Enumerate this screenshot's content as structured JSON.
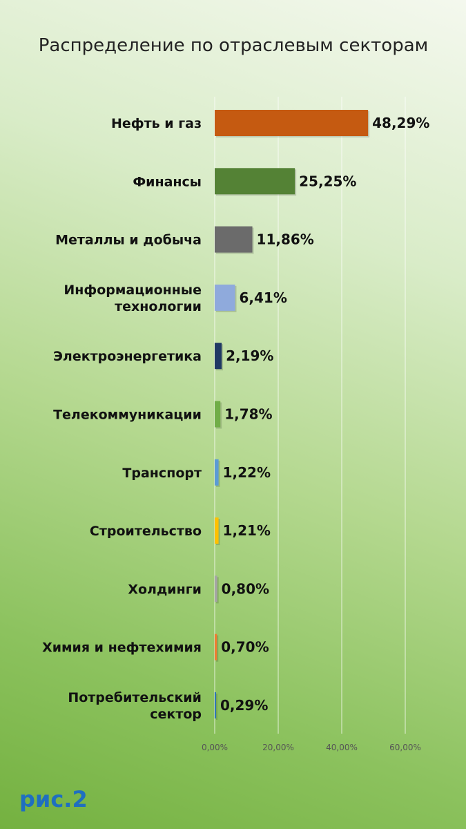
{
  "figure_label": "рис.2",
  "chart_data": {
    "type": "bar",
    "orientation": "horizontal",
    "title": "Распределение по отраслевым секторам",
    "xlabel": "",
    "ylabel": "",
    "xlim": [
      0,
      60
    ],
    "grid": true,
    "legend": false,
    "x_ticks": [
      "0,00%",
      "20,00%",
      "40,00%",
      "60,00%"
    ],
    "categories": [
      [
        "Нефть и газ"
      ],
      [
        "Финансы"
      ],
      [
        "Металлы и добыча"
      ],
      [
        "Информационные",
        "технологии"
      ],
      [
        "Электроэнергетика"
      ],
      [
        "Телекоммуникации"
      ],
      [
        "Транспорт"
      ],
      [
        "Строительство"
      ],
      [
        "Холдинги"
      ],
      [
        "Химия и нефтехимия"
      ],
      [
        "Потребительский",
        "сектор"
      ]
    ],
    "values": [
      48.29,
      25.25,
      11.86,
      6.41,
      2.19,
      1.78,
      1.22,
      1.21,
      0.8,
      0.7,
      0.29
    ],
    "value_labels": [
      "48,29%",
      "25,25%",
      "11,86%",
      "6,41%",
      "2,19%",
      "1,78%",
      "1,22%",
      "1,21%",
      "0,80%",
      "0,70%",
      "0,29%"
    ],
    "colors": [
      "#c55a11",
      "#548235",
      "#6b6b6b",
      "#8faadc",
      "#1f3864",
      "#70ad47",
      "#5b9bd5",
      "#ffc000",
      "#a5a5a5",
      "#ed7d31",
      "#2e75b6"
    ]
  }
}
